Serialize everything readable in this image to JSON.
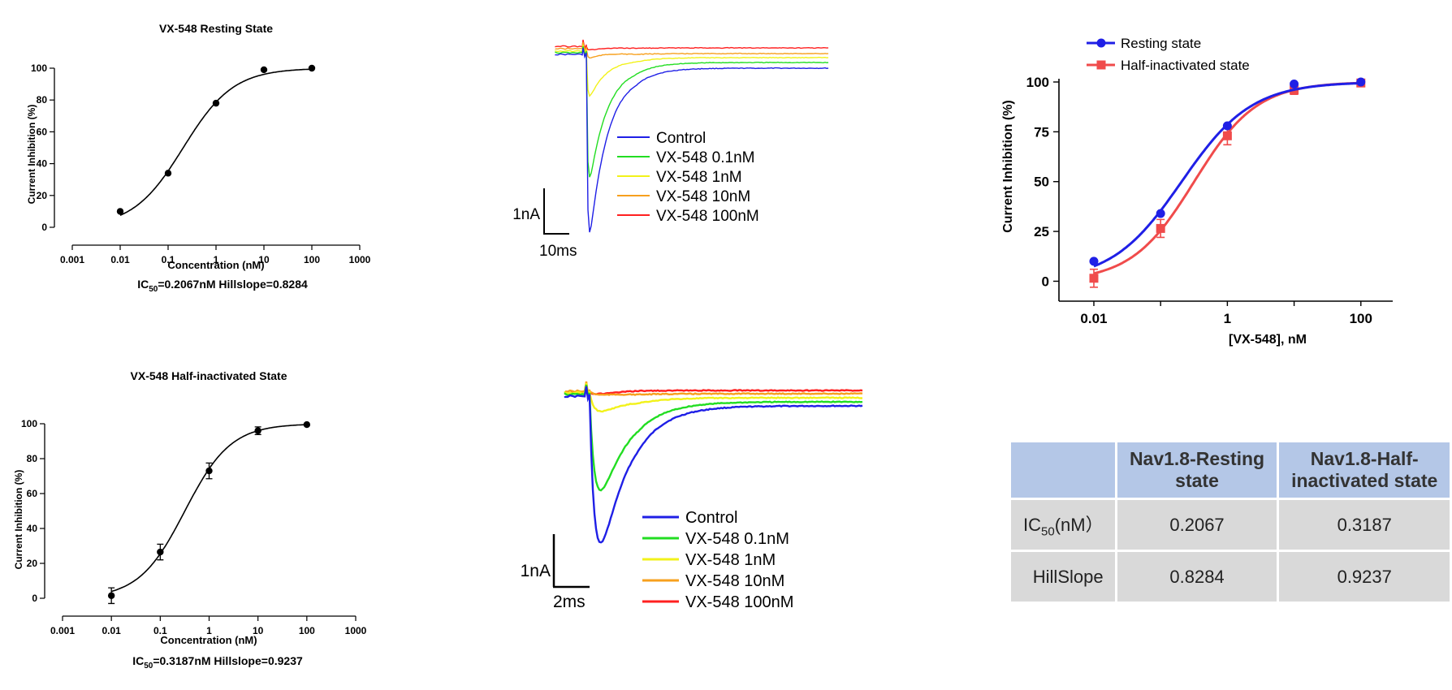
{
  "chart_data": [
    {
      "id": "resting",
      "type": "scatter",
      "title": "VX-548 Resting State",
      "xlabel": "Concentration (nM)",
      "ylabel": "Current Inhibition (%)",
      "x_scale": "log",
      "xlim": [
        0.001,
        1000
      ],
      "ylim": [
        0,
        100
      ],
      "x_ticks": [
        "0.001",
        "0.01",
        "0.1",
        "1",
        "10",
        "100",
        "1000"
      ],
      "y_ticks": [
        "0",
        "20",
        "40",
        "60",
        "80",
        "100"
      ],
      "x": [
        0.01,
        0.1,
        1,
        10,
        100
      ],
      "y": [
        10,
        34,
        78,
        99,
        100
      ],
      "fit": {
        "ic50": 0.2067,
        "hill": 0.8284
      },
      "caption_prefix": "IC",
      "caption_sub": "50",
      "caption_rest": "=0.2067nM Hillslope=0.8284"
    },
    {
      "id": "half",
      "type": "scatter",
      "title": "VX-548 Half-inactivated State",
      "xlabel": "Concentration (nM)",
      "ylabel": "Current Inhibition (%)",
      "x_scale": "log",
      "xlim": [
        0.001,
        1000
      ],
      "ylim": [
        0,
        100
      ],
      "x_ticks": [
        "0.001",
        "0.01",
        "0.1",
        "1",
        "10",
        "100",
        "1000"
      ],
      "y_ticks": [
        "0",
        "20",
        "40",
        "60",
        "80",
        "100"
      ],
      "x": [
        0.01,
        0.1,
        1,
        10,
        100
      ],
      "y": [
        1.5,
        26.5,
        73,
        96,
        99.5
      ],
      "error": [
        4.5,
        4.5,
        4.5,
        2.2,
        0
      ],
      "fit": {
        "ic50": 0.3187,
        "hill": 0.9237
      },
      "caption_prefix": "IC",
      "caption_sub": "50",
      "caption_rest": "=0.3187nM Hillslope=0.9237"
    },
    {
      "id": "combined",
      "type": "line",
      "xlabel": "[VX-548], nM",
      "ylabel": "Current Inhibition (%)",
      "x_scale": "log",
      "xlim": [
        0.003,
        300
      ],
      "ylim": [
        -10,
        100
      ],
      "x_ticks": [
        "0.01",
        "1",
        "100"
      ],
      "y_ticks": [
        "0",
        "25",
        "50",
        "75",
        "100"
      ],
      "legend": "top-left",
      "series": [
        {
          "name": "Resting state",
          "color": "#1f1fe6",
          "marker": "circle",
          "x": [
            0.01,
            0.1,
            1,
            10,
            100
          ],
          "y": [
            10,
            34,
            78,
            99,
            100
          ],
          "ic50": 0.2067,
          "hill": 0.8284
        },
        {
          "name": "Half-inactivated state",
          "color": "#f04b4b",
          "marker": "square",
          "x": [
            0.01,
            0.1,
            1,
            10,
            100
          ],
          "y": [
            1.5,
            26.5,
            73,
            96,
            99.5
          ],
          "error": [
            4.5,
            4.5,
            4.5,
            2.2,
            0
          ],
          "ic50": 0.3187,
          "hill": 0.9237
        }
      ]
    }
  ],
  "traces_top": {
    "type": "line",
    "legend": [
      "Control",
      "VX-548 0.1nM",
      "VX-548 1nM",
      "VX-548 10nM",
      "VX-548 100nM"
    ],
    "colors": [
      "#1f1fe6",
      "#22dd22",
      "#f2f21a",
      "#f7a01e",
      "#ff2020"
    ],
    "peaks": [
      -1.0,
      -0.7,
      -0.25,
      -0.05,
      -0.02
    ],
    "scale_y": "1nA",
    "scale_x": "10ms"
  },
  "traces_bottom": {
    "type": "line",
    "legend": [
      "Control",
      "VX-548 0.1nM",
      "VX-548 1nM",
      "VX-548 10nM",
      "VX-548 100nM"
    ],
    "colors": [
      "#1f1fe6",
      "#22dd22",
      "#f2f21a",
      "#f7a01e",
      "#ff2020"
    ],
    "peaks": [
      -1.0,
      -0.65,
      -0.12,
      -0.02,
      -0.01
    ],
    "scale_y": "1nA",
    "scale_x": "2ms"
  },
  "table": {
    "headers": [
      "",
      "Nav1.8-Resting state",
      "Nav1.8-Half-inactivated state"
    ],
    "rows": [
      {
        "label_main": "IC",
        "label_sub": "50",
        "label_rest": "(nM）",
        "values": [
          "0.2067",
          "0.3187"
        ]
      },
      {
        "label_main": "HillSlope",
        "label_sub": "",
        "label_rest": "",
        "values": [
          "0.8284",
          "0.9237"
        ]
      }
    ]
  }
}
